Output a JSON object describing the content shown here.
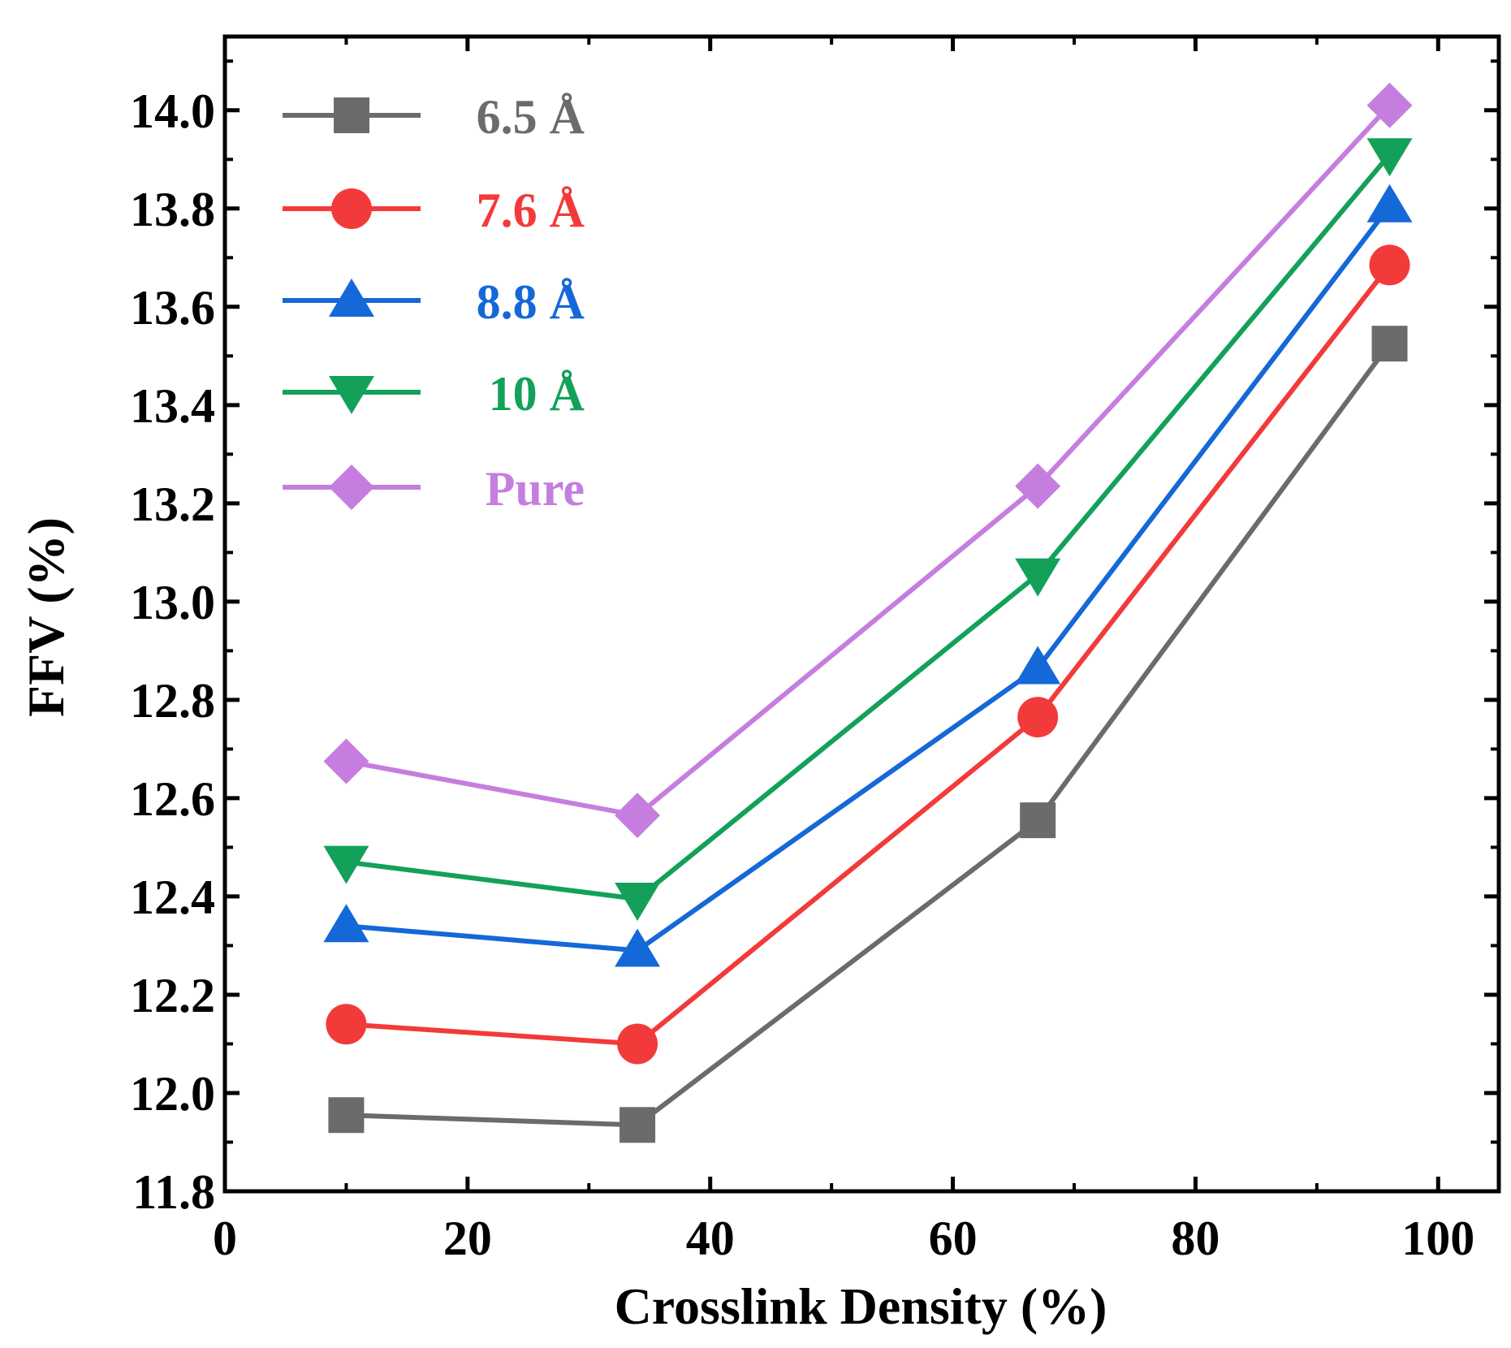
{
  "chart_data": {
    "type": "line",
    "title": "",
    "xlabel": "Crosslink Density (%)",
    "ylabel": "FFV (%)",
    "xlim": [
      0,
      105
    ],
    "ylim": [
      11.8,
      14.15
    ],
    "x_ticks": [
      0,
      20,
      40,
      60,
      80,
      100
    ],
    "x_minor_ticks": [
      10,
      30,
      50,
      70,
      90
    ],
    "y_ticks": [
      11.8,
      12.0,
      12.2,
      12.4,
      12.6,
      12.8,
      13.0,
      13.2,
      13.4,
      13.6,
      13.8,
      14.0
    ],
    "y_tick_labels": [
      "11.8",
      "12.0",
      "12.2",
      "12.4",
      "12.6",
      "12.8",
      "13.0",
      "13.2",
      "13.4",
      "13.6",
      "13.8",
      "14.0"
    ],
    "x_tick_labels": [
      "0",
      "20",
      "40",
      "60",
      "80",
      "100"
    ],
    "legend_position": "top-left",
    "x": [
      10,
      34,
      67,
      96
    ],
    "series": [
      {
        "name": "6.5 Å",
        "values": [
          11.955,
          11.935,
          12.555,
          13.525
        ],
        "color": "#6b6b6b",
        "marker": "square"
      },
      {
        "name": "7.6 Å",
        "values": [
          12.14,
          12.1,
          12.765,
          13.685
        ],
        "color": "#f33a3a",
        "marker": "circle"
      },
      {
        "name": "8.8 Å",
        "values": [
          12.34,
          12.29,
          12.865,
          13.805
        ],
        "color": "#1468d8",
        "marker": "triangle-up"
      },
      {
        "name": "10 Å",
        "values": [
          12.47,
          12.395,
          13.055,
          13.91
        ],
        "color": "#13a15a",
        "marker": "triangle-down"
      },
      {
        "name": "Pure",
        "values": [
          12.675,
          12.565,
          13.235,
          14.01
        ],
        "color": "#c57ee0",
        "marker": "diamond"
      }
    ]
  }
}
